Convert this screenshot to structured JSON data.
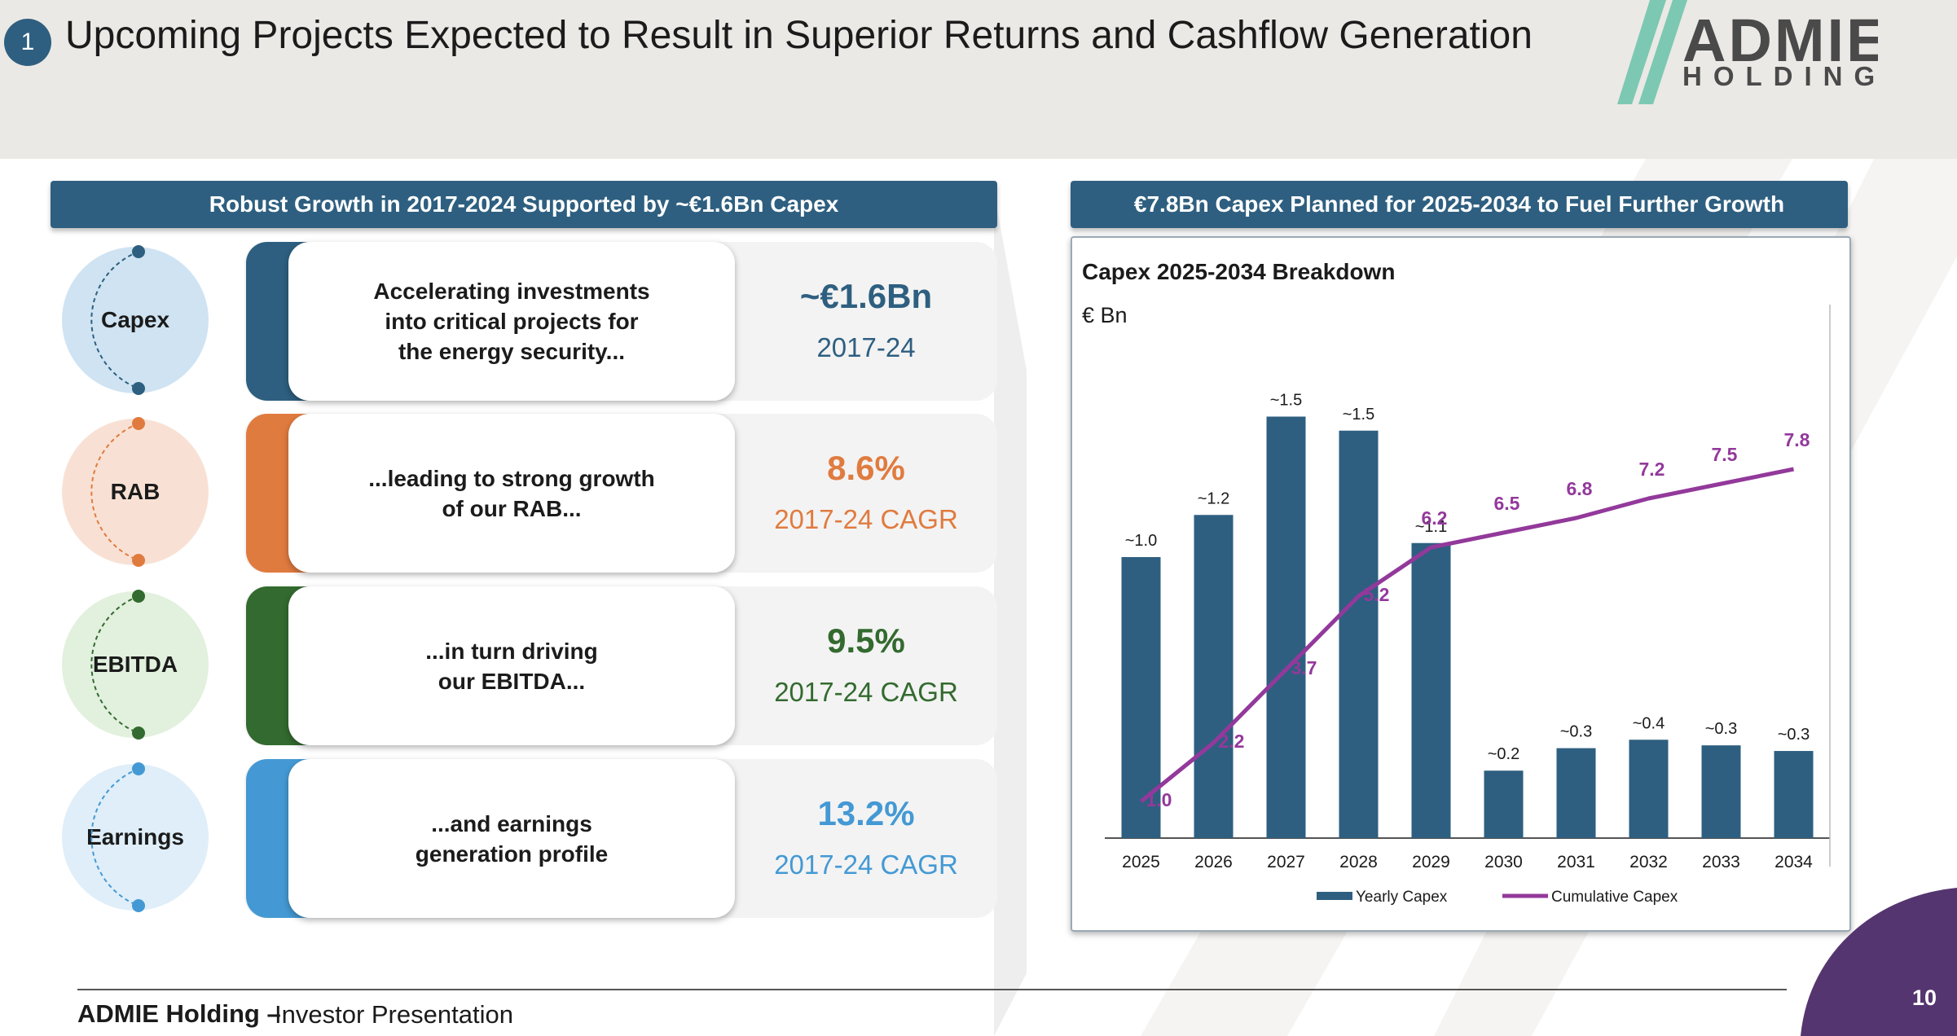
{
  "header": {
    "section_number": "1",
    "title": "Upcoming Projects Expected to Result in Superior Returns and Cashflow Generation",
    "logo_top": "ADMIE",
    "logo_bottom": "HOLDING"
  },
  "left_panel": {
    "heading": "Robust Growth in 2017-2024 Supported by ~€1.6Bn Capex",
    "rows": [
      {
        "label": "Capex",
        "text": "Accelerating investments\ninto critical projects for\nthe energy security...",
        "value": "~€1.6Bn",
        "period": "2017-24",
        "color": "#2e5f80",
        "bubble_color": "#cfe3f2"
      },
      {
        "label": "RAB",
        "text": "...leading to strong growth\nof our RAB...",
        "value": "8.6%",
        "period": "2017-24 CAGR",
        "color": "#e07b3f",
        "bubble_color": "#f8e1d4"
      },
      {
        "label": "EBITDA",
        "text": "...in turn driving\nour EBITDA...",
        "value": "9.5%",
        "period": "2017-24 CAGR",
        "color": "#336a2f",
        "bubble_color": "#e2f0de"
      },
      {
        "label": "Earnings",
        "text": "...and earnings\ngeneration profile",
        "value": "13.2%",
        "period": "2017-24 CAGR",
        "color": "#4499d4",
        "bubble_color": "#dfeef8"
      }
    ]
  },
  "right_panel": {
    "heading": "€7.8Bn Capex Planned for 2025-2034 to Fuel Further Growth"
  },
  "chart_data": {
    "type": "bar",
    "title": "Capex 2025-2034 Breakdown",
    "unit_label": "€ Bn",
    "categories": [
      "2025",
      "2026",
      "2027",
      "2028",
      "2029",
      "2030",
      "2031",
      "2032",
      "2033",
      "2034"
    ],
    "series": [
      {
        "name": "Yearly Capex",
        "type": "bar",
        "color": "#2e5f80",
        "values": [
          1.0,
          1.15,
          1.5,
          1.45,
          1.05,
          0.24,
          0.32,
          0.35,
          0.33,
          0.31
        ],
        "labels": [
          "~1.0",
          "~1.2",
          "~1.5",
          "~1.5",
          "~1.1",
          "~0.2",
          "~0.3",
          "~0.4",
          "~0.3",
          "~0.3"
        ]
      },
      {
        "name": "Cumulative Capex",
        "type": "line",
        "color": "#93399b",
        "values": [
          1.0,
          2.2,
          3.7,
          5.2,
          6.2,
          6.5,
          6.8,
          7.2,
          7.5,
          7.8
        ],
        "labels": [
          "1.0",
          "2.2",
          "3.7",
          "5.2",
          "6.2",
          "6.5",
          "6.8",
          "7.2",
          "7.5",
          "7.8"
        ]
      }
    ],
    "legend_position": "bottom",
    "grid": false
  },
  "footer": {
    "brand": "ADMIE Holding –",
    "subtitle": "Investor Presentation",
    "page_number": "10"
  }
}
